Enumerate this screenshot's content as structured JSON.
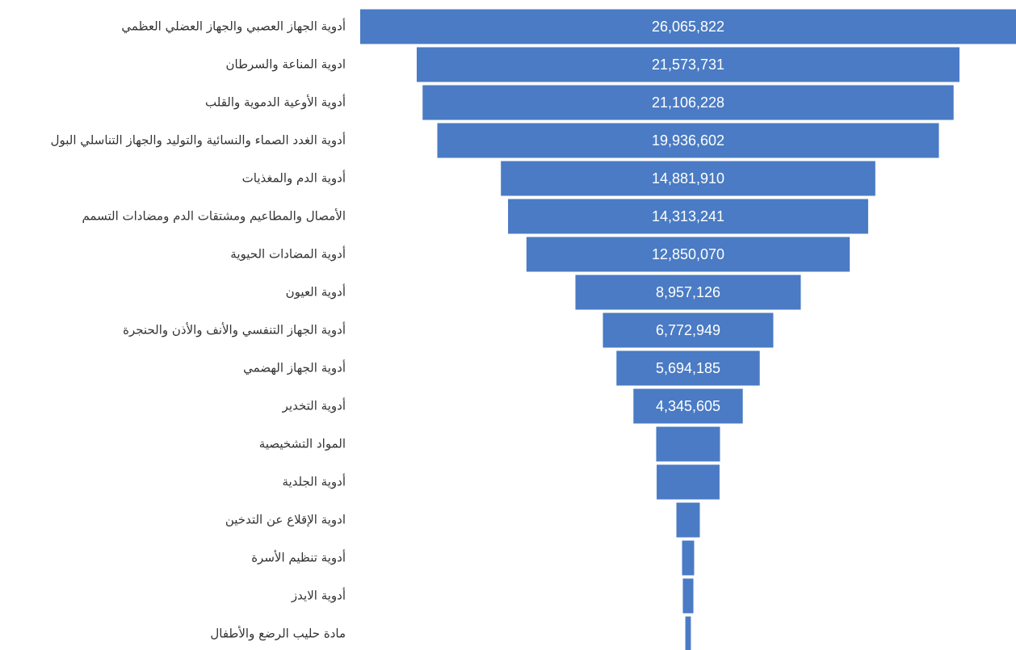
{
  "chart_data": {
    "type": "funnel",
    "categories": [
      "أدوية الجهاز العصبي والجهاز العضلي العظمي",
      "ادوية  المناعة والسرطان",
      "أدوية الأوعية الدموية والقلب",
      "أدوية الغدد الصماء والنسائية والتوليد والجهاز التناسلي البول",
      "أدوية الدم والمغذيات",
      "الأمصال والمطاعيم ومشتقات الدم ومضادات التسمم",
      "أدوية المضادات الحيوية",
      "أدوية العيون",
      "أدوية الجهاز التنفسي والأنف والأذن والحنجرة",
      "أدوية الجهاز الهضمي",
      "أدوية التخدير",
      "المواد التشخيصية",
      "أدوية الجلدية",
      "ادوية الإقلاع عن التدخين",
      "أدوية تنظيم الأسرة",
      "أدوية الايدز",
      "مادة حليب الرضع والأطفال"
    ],
    "values": [
      26065822,
      21573731,
      21106228,
      19936602,
      14881910,
      14313241,
      12850070,
      8957126,
      6772949,
      5694185,
      4345605,
      2536000,
      2500000,
      930000,
      480000,
      420000,
      220000
    ],
    "value_labels": [
      "26,065,822",
      "21,573,731",
      "21,106,228",
      "19,936,602",
      "14,881,910",
      "14,313,241",
      "12,850,070",
      "8,957,126",
      "6,772,949",
      "5,694,185",
      "4,345,605",
      null,
      null,
      null,
      null,
      null,
      null
    ],
    "color": "#4a7bc4"
  }
}
